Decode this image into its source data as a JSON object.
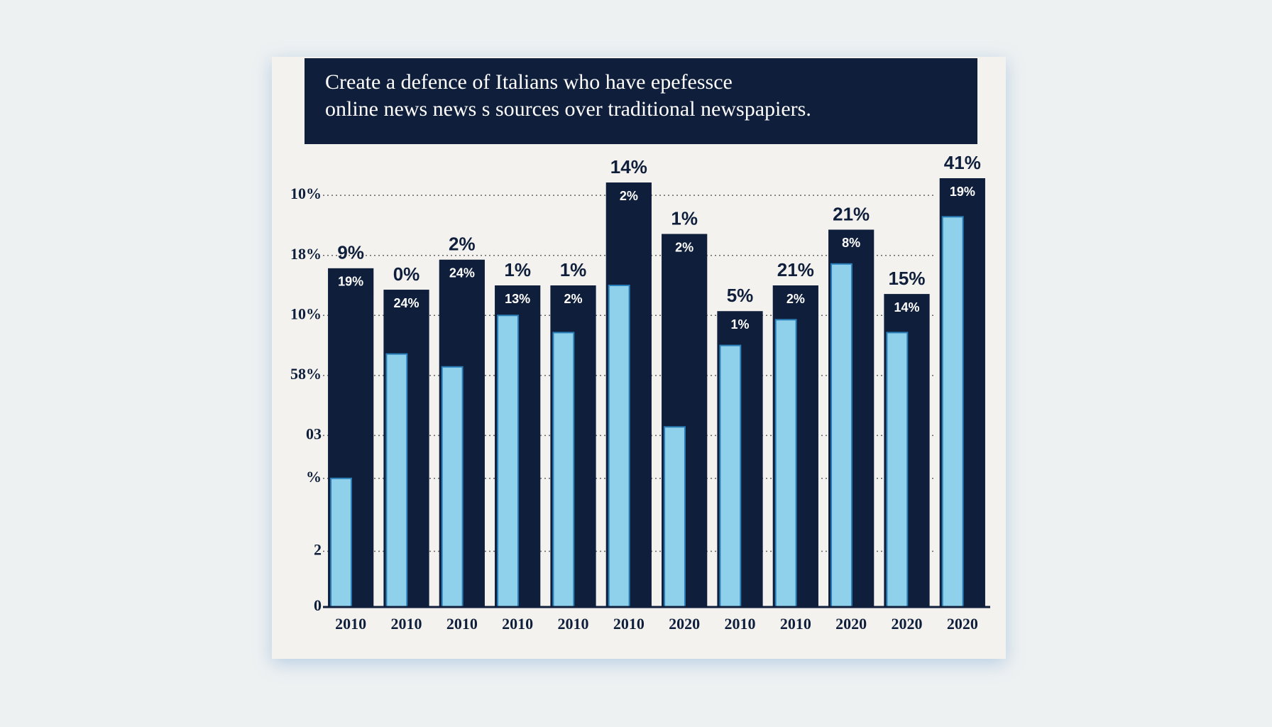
{
  "chart_data": {
    "type": "bar",
    "title": [
      "Create a defence of Italians who have epefessce",
      "online news news s sources over traditional newspapiers."
    ],
    "categories": [
      "2010",
      "2010",
      "2010",
      "2010",
      "2010",
      "2010",
      "2020",
      "2010",
      "2010",
      "2020",
      "2020",
      "2020"
    ],
    "series": [
      {
        "color": "#0f1f3b",
        "values": [
          79,
          74,
          81,
          75,
          75,
          99,
          87,
          69,
          75,
          88,
          73,
          100
        ]
      },
      {
        "color": "#8fd0ea",
        "values": [
          30,
          59,
          56,
          68,
          64,
          75,
          42,
          61,
          67,
          80,
          64,
          91
        ]
      }
    ],
    "bar_labels": [
      "9%",
      "0%",
      "2%",
      "1%",
      "1%",
      "14%",
      "1%",
      "5%",
      "21%",
      "21%",
      "15%",
      "41%"
    ],
    "inner_labels": [
      "19%",
      "24%",
      "24%",
      "13%",
      "2%",
      "2%",
      "2%",
      "1%",
      "2%",
      "8%",
      "14%",
      "19%"
    ],
    "ylim": [
      0,
      100
    ],
    "yticks": [
      {
        "value": 96,
        "label": "10%"
      },
      {
        "value": 82,
        "label": "18%"
      },
      {
        "value": 68,
        "label": "10%"
      },
      {
        "value": 54,
        "label": "58%"
      },
      {
        "value": 40,
        "label": "03"
      },
      {
        "value": 30,
        "label": "%"
      },
      {
        "value": 13,
        "label": "2"
      },
      0
    ],
    "grid": true
  }
}
